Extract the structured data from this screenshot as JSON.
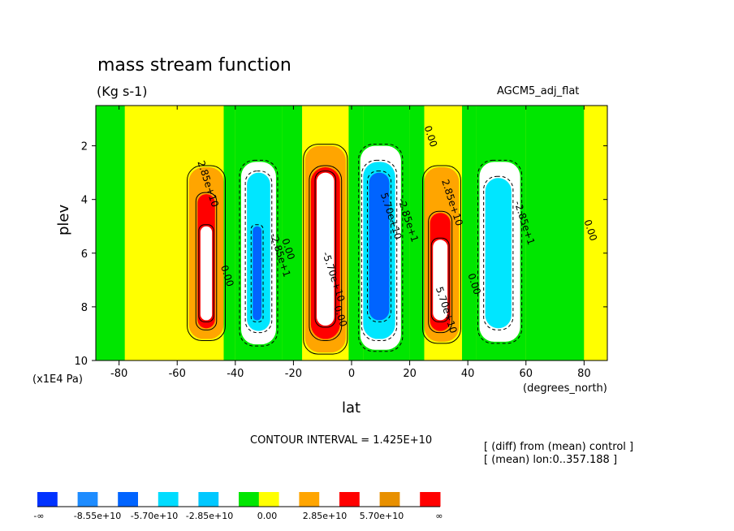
{
  "chart_data": {
    "type": "heatmap",
    "title": "mass stream function",
    "units": "(Kg s-1)",
    "experiment": "AGCM5_adj_flat",
    "xlabel": "lat",
    "ylabel": "plev",
    "x_units": "(degrees_north)",
    "y_units": "(x1E4 Pa)",
    "xlim": [
      -88,
      88
    ],
    "ylim": [
      0.5,
      10
    ],
    "y_reversed": true,
    "x_ticks": [
      "-80",
      "-60",
      "-40",
      "-20",
      "0",
      "20",
      "40",
      "60",
      "80"
    ],
    "x_tick_values": [
      -80,
      -60,
      -40,
      -20,
      0,
      20,
      40,
      60,
      80
    ],
    "y_ticks": [
      "2",
      "4",
      "6",
      "8",
      "10"
    ],
    "y_tick_values": [
      2,
      4,
      6,
      8,
      10
    ],
    "contour_interval": "CONTOUR INTERVAL = 1.425E+10",
    "notes": [
      "[ (diff) from (mean) control ]",
      "[ (mean) lon:0..357.188 ]"
    ],
    "contour_labels": [
      "2.85e+10",
      "0.00",
      "-2.85e+1",
      "0.00",
      "-5.70e+10",
      "-2.85e+1",
      "5.70e+10",
      "0.00",
      "2.85e+10",
      "0.00",
      "5.70e+10",
      "0.00",
      "-2.85e+1",
      "0.00"
    ],
    "cells": [
      {
        "x0": -88,
        "x1": -78,
        "y0": 0.5,
        "y1": 10,
        "level": 2
      },
      {
        "x0": -78,
        "x1": -66,
        "y0": 0.5,
        "y1": 10,
        "level": 3
      },
      {
        "x0": -66,
        "x1": -44,
        "y0": 0.5,
        "y1": 10,
        "level": 3
      },
      {
        "x0": -56,
        "x1": -44,
        "y0": 2.8,
        "y1": 9.2,
        "level": 4
      },
      {
        "x0": -53,
        "x1": -47,
        "y0": 3.8,
        "y1": 8.8,
        "level": 5
      },
      {
        "x0": -52,
        "x1": -48,
        "y0": 5,
        "y1": 8.5,
        "level": 6
      },
      {
        "x0": -44,
        "x1": -40,
        "y0": 0.5,
        "y1": 10,
        "level": 2
      },
      {
        "x0": -40,
        "x1": -24,
        "y0": 0.5,
        "y1": 10,
        "level": 2
      },
      {
        "x0": -38,
        "x1": -26,
        "y0": 2.6,
        "y1": 9.4,
        "level": 1
      },
      {
        "x0": -36,
        "x1": -28,
        "y0": 3,
        "y1": 8.9,
        "level": 0
      },
      {
        "x0": -34,
        "x1": -31,
        "y0": 5,
        "y1": 8.5,
        "level": -1
      },
      {
        "x0": -24,
        "x1": -17,
        "y0": 0.5,
        "y1": 10,
        "level": 2
      },
      {
        "x0": -17,
        "x1": -1,
        "y0": 0.5,
        "y1": 10,
        "level": 3
      },
      {
        "x0": -16,
        "x1": -2,
        "y0": 2.0,
        "y1": 9.7,
        "level": 4
      },
      {
        "x0": -14,
        "x1": -4,
        "y0": 2.8,
        "y1": 9.2,
        "level": 5
      },
      {
        "x0": -12,
        "x1": -6,
        "y0": 3,
        "y1": 8.7,
        "level": 6
      },
      {
        "x0": -1,
        "x1": 4,
        "y0": 0.5,
        "y1": 10,
        "level": 2
      },
      {
        "x0": 4,
        "x1": 20,
        "y0": 0.5,
        "y1": 10,
        "level": 2
      },
      {
        "x0": 3,
        "x1": 17,
        "y0": 2.0,
        "y1": 9.6,
        "level": 1
      },
      {
        "x0": 4,
        "x1": 15,
        "y0": 2.6,
        "y1": 9.2,
        "level": 0
      },
      {
        "x0": 6,
        "x1": 13,
        "y0": 3,
        "y1": 8.5,
        "level": -1
      },
      {
        "x0": 20,
        "x1": 25,
        "y0": 0.5,
        "y1": 10,
        "level": 2
      },
      {
        "x0": 25,
        "x1": 38,
        "y0": 0.5,
        "y1": 10,
        "level": 3
      },
      {
        "x0": 25,
        "x1": 37,
        "y0": 2.8,
        "y1": 9.3,
        "level": 4
      },
      {
        "x0": 27,
        "x1": 34,
        "y0": 4.5,
        "y1": 8.9,
        "level": 5
      },
      {
        "x0": 28,
        "x1": 33,
        "y0": 5.5,
        "y1": 8.5,
        "level": 6
      },
      {
        "x0": 38,
        "x1": 43,
        "y0": 0.5,
        "y1": 10,
        "level": 2
      },
      {
        "x0": 43,
        "x1": 60,
        "y0": 0.5,
        "y1": 10,
        "level": 2
      },
      {
        "x0": 44,
        "x1": 58,
        "y0": 2.6,
        "y1": 9.3,
        "level": 1
      },
      {
        "x0": 46,
        "x1": 55,
        "y0": 3.2,
        "y1": 8.8,
        "level": 0
      },
      {
        "x0": 60,
        "x1": 80,
        "y0": 0.5,
        "y1": 10,
        "level": 2
      },
      {
        "x0": 80,
        "x1": 88,
        "y0": 0.5,
        "y1": 10,
        "level": 3
      }
    ],
    "colorbar": {
      "labels": [
        "-∞",
        "-8.55e+10",
        "-5.70e+10",
        "-2.85e+10",
        "0.00",
        "2.85e+10",
        "5.70e+10",
        "∞"
      ],
      "colors": [
        "#0032ff",
        "#ffffff",
        "#1e8cff",
        "#ffffff",
        "#0064ff",
        "#ffffff",
        "#00dcff",
        "#ffffff",
        "#00c8ff",
        "#ffffff",
        "#00e600",
        "#ffff00",
        "#ffffff",
        "#ffa500",
        "#ffffff",
        "#ff0000",
        "#ffffff",
        "#e89000",
        "#ffffff",
        "#ff0000"
      ]
    }
  },
  "palette": {
    "-1": "#0064ff",
    "0": "#00e6ff",
    "1": "#ffffff",
    "2": "#00e600",
    "3": "#ffff00",
    "4": "#ffa500",
    "5": "#ff0000",
    "6": "#ffffff"
  }
}
